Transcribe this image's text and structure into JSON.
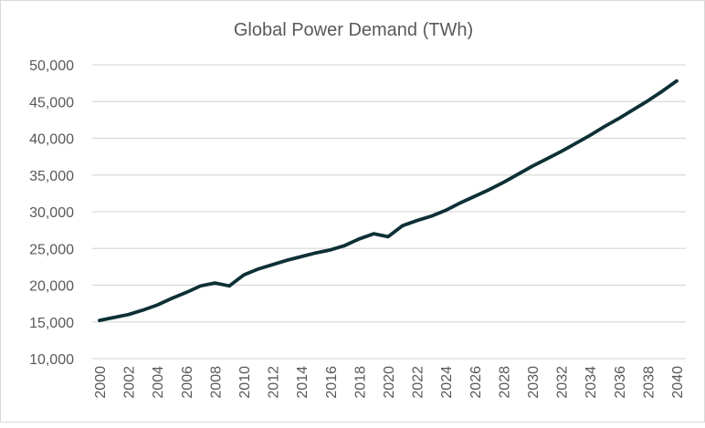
{
  "chart_data": {
    "type": "line",
    "title": "Global Power Demand (TWh)",
    "xlabel": "",
    "ylabel": "",
    "x": [
      2000,
      2001,
      2002,
      2003,
      2004,
      2005,
      2006,
      2007,
      2008,
      2009,
      2010,
      2011,
      2012,
      2013,
      2014,
      2015,
      2016,
      2017,
      2018,
      2019,
      2020,
      2021,
      2022,
      2023,
      2024,
      2025,
      2026,
      2027,
      2028,
      2029,
      2030,
      2031,
      2032,
      2033,
      2034,
      2035,
      2036,
      2037,
      2038,
      2039,
      2040
    ],
    "series": [
      {
        "values": [
          15200,
          15600,
          16000,
          16600,
          17300,
          18200,
          19000,
          19900,
          20300,
          19900,
          21400,
          22200,
          22800,
          23400,
          23900,
          24400,
          24800,
          25400,
          26300,
          27000,
          26600,
          28100,
          28800,
          29400,
          30200,
          31200,
          32100,
          33000,
          34000,
          35100,
          36200,
          37200,
          38200,
          39300,
          40400,
          41600,
          42700,
          43900,
          45100,
          46400,
          47800
        ],
        "color": "#0d3036"
      }
    ],
    "ylim": [
      10000,
      50000
    ],
    "yticks": [
      "10,000",
      "15,000",
      "20,000",
      "25,000",
      "30,000",
      "35,000",
      "40,000",
      "45,000",
      "50,000"
    ],
    "xticks": [
      "2000",
      "2002",
      "2004",
      "2006",
      "2008",
      "2010",
      "2012",
      "2014",
      "2016",
      "2018",
      "2020",
      "2022",
      "2024",
      "2026",
      "2028",
      "2030",
      "2032",
      "2034",
      "2036",
      "2038",
      "2040"
    ],
    "grid": true,
    "legend": "none"
  }
}
